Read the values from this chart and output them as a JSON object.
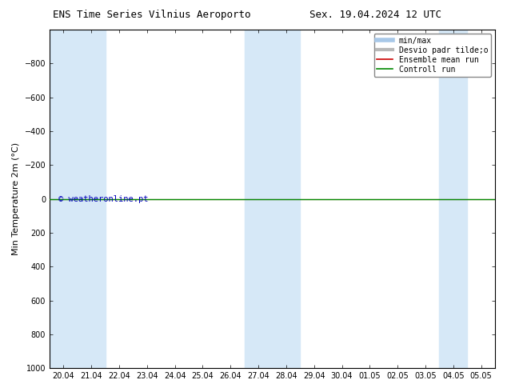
{
  "title_left": "ENS Time Series Vilnius Aeroporto",
  "title_right": "Sex. 19.04.2024 12 UTC",
  "ylabel": "Min Temperature 2m (°C)",
  "ylim_min": -1000,
  "ylim_max": 1000,
  "yticks": [
    -800,
    -600,
    -400,
    -200,
    0,
    200,
    400,
    600,
    800,
    1000
  ],
  "x_labels": [
    "20.04",
    "21.04",
    "22.04",
    "23.04",
    "24.04",
    "25.04",
    "26.04",
    "27.04",
    "28.04",
    "29.04",
    "30.04",
    "01.05",
    "02.05",
    "03.05",
    "04.05",
    "05.05"
  ],
  "x_positions": [
    0,
    1,
    2,
    3,
    4,
    5,
    6,
    7,
    8,
    9,
    10,
    11,
    12,
    13,
    14,
    15
  ],
  "x_min": -0.5,
  "x_max": 15.5,
  "shaded_bands": [
    [
      0,
      1
    ],
    [
      1,
      2
    ],
    [
      7,
      8
    ],
    [
      8,
      9
    ],
    [
      14,
      15
    ]
  ],
  "shaded_color": "#d6e8f7",
  "control_run_y": 0.0,
  "control_run_color": "#008800",
  "ensemble_mean_color": "#cc0000",
  "minmax_line_color": "#a8c8e8",
  "stddev_color": "#b8b8b8",
  "watermark": "© weatheronline.pt",
  "watermark_color": "#0000bb",
  "background_color": "#ffffff",
  "plot_bg": "#ffffff",
  "title_fontsize": 9,
  "tick_fontsize": 7,
  "ylabel_fontsize": 8,
  "legend_fontsize": 7
}
